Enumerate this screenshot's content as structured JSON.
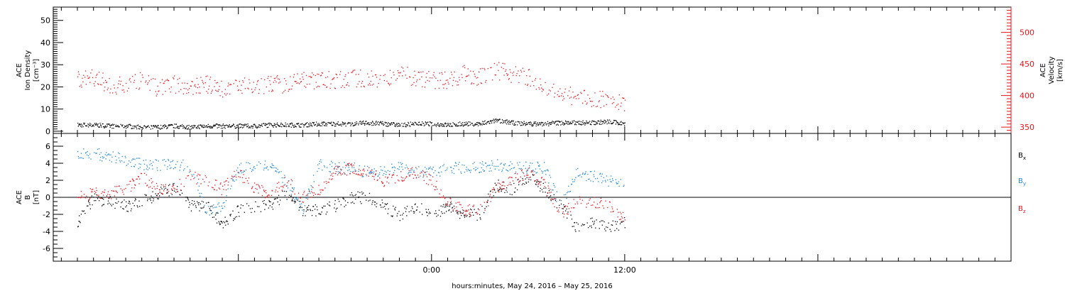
{
  "chart_data": [
    {
      "type": "scatter",
      "title": "",
      "ylabel_left": [
        "ACE",
        "Ion Density",
        "[cm⁻³]"
      ],
      "ylabel_right": [
        "ACE",
        "Velocity",
        "[km/s]"
      ],
      "ylim_left": [
        -1,
        56
      ],
      "ylim_right": [
        340,
        540
      ],
      "yticks_left": [
        "0",
        "10",
        "20",
        "30",
        "40",
        "50"
      ],
      "yticks_right": [
        "350",
        "400",
        "450",
        "500"
      ],
      "series": [
        {
          "axis": "left",
          "color": "#000000",
          "x": [
            -22,
            -21,
            -20,
            -19,
            -18,
            -17,
            -16,
            -15,
            -14,
            -13,
            -12,
            -11,
            -10,
            -9,
            -8,
            -7,
            -6,
            -5,
            -4,
            -3,
            -2,
            -1,
            0,
            1,
            2,
            3,
            4,
            5,
            6,
            7,
            8,
            9,
            10,
            11,
            12
          ],
          "y": [
            3,
            3,
            2.5,
            2.5,
            2,
            2,
            2.5,
            2,
            2.5,
            2.5,
            2.5,
            2.5,
            3,
            3,
            3,
            3.5,
            3.5,
            3.5,
            4,
            3.5,
            3,
            3.5,
            3.5,
            3,
            3.5,
            3.5,
            5,
            4,
            3.5,
            3.5,
            4,
            4,
            4,
            4.5,
            3.5
          ]
        },
        {
          "axis": "right",
          "color": "#e8141b",
          "x": [
            -22,
            -21,
            -20,
            -19,
            -18,
            -17,
            -16,
            -15,
            -14,
            -13,
            -12,
            -11,
            -10,
            -9,
            -8,
            -7,
            -6,
            -5,
            -4,
            -3,
            -2,
            -1,
            0,
            1,
            2,
            3,
            4,
            5,
            6,
            7,
            8,
            9,
            10,
            11,
            12
          ],
          "y": [
            428,
            428,
            418,
            415,
            425,
            410,
            418,
            415,
            418,
            412,
            418,
            412,
            420,
            418,
            425,
            425,
            425,
            428,
            428,
            428,
            435,
            428,
            425,
            425,
            435,
            430,
            440,
            435,
            430,
            415,
            400,
            400,
            395,
            395,
            385
          ]
        }
      ]
    },
    {
      "type": "scatter",
      "title": "",
      "ylabel": [
        "ACE",
        "B",
        "[nT]"
      ],
      "ylim": [
        -7.5,
        7.5
      ],
      "yticks": [
        "-6",
        "-4",
        "-2",
        "0",
        "2",
        "4",
        "6"
      ],
      "series": [
        {
          "name": "B",
          "sub": "x",
          "color": "#000000",
          "x": [
            -22,
            -21,
            -20,
            -19,
            -18,
            -17,
            -16,
            -15,
            -14,
            -13,
            -12,
            -11,
            -10,
            -9,
            -8,
            -7,
            -6,
            -5,
            -4,
            -3,
            -2,
            -1,
            0,
            1,
            2,
            3,
            4,
            5,
            6,
            7,
            8,
            9,
            10,
            11,
            12
          ],
          "y": [
            -3,
            0,
            -0.5,
            -1,
            -0.5,
            0.5,
            1,
            -1,
            -1,
            -3,
            -1.5,
            -1,
            -1,
            0.5,
            -1.5,
            -1.5,
            -1,
            0,
            0,
            -1,
            -2,
            -1,
            -2,
            -1,
            -2,
            -2,
            1.5,
            1,
            2.5,
            1,
            -1,
            -3.5,
            -3,
            -3.5,
            -3
          ]
        },
        {
          "name": "B",
          "sub": "y",
          "color": "#1d86d5",
          "x": [
            -22,
            -21,
            -20,
            -19,
            -18,
            -17,
            -16,
            -15,
            -14,
            -13,
            -12,
            -11,
            -10,
            -9,
            -8,
            -7,
            -6,
            -5,
            -4,
            -3,
            -2,
            -1,
            0,
            1,
            2,
            3,
            4,
            5,
            6,
            7,
            8,
            9,
            10,
            11,
            12
          ],
          "y": [
            5,
            5.2,
            4.8,
            4.5,
            4,
            3.8,
            4,
            3.5,
            -1.5,
            -1,
            3.5,
            3.5,
            3.8,
            2,
            -1.5,
            4,
            3.5,
            3.5,
            3,
            3.2,
            3.5,
            3,
            3,
            3.5,
            3.5,
            3.5,
            3.8,
            3.5,
            3.5,
            3.5,
            -1,
            3,
            2.5,
            2,
            1.8
          ]
        },
        {
          "name": "B",
          "sub": "z",
          "color": "#e8141b",
          "x": [
            -22,
            -21,
            -20,
            -19,
            -18,
            -17,
            -16,
            -15,
            -14,
            -13,
            -12,
            -11,
            -10,
            -9,
            -8,
            -7,
            -6,
            -5,
            -4,
            -3,
            -2,
            -1,
            0,
            1,
            2,
            3,
            4,
            5,
            6,
            7,
            8,
            9,
            10,
            11,
            12
          ],
          "y": [
            0,
            0.5,
            0.5,
            1,
            2.5,
            1,
            1,
            2.5,
            2,
            1,
            3,
            1,
            0.5,
            2,
            0,
            1,
            3,
            3.5,
            3,
            2,
            2.5,
            3,
            2,
            -0.5,
            -1.5,
            -1.5,
            1,
            2,
            3,
            1.5,
            -2,
            -0.5,
            -0.5,
            -1,
            -2.5
          ]
        }
      ]
    }
  ],
  "xaxis": {
    "label": "hours:minutes, May 24, 2016 – May 25, 2016",
    "ticks": [
      "0:00",
      "12:00"
    ],
    "xlim": [
      -23.5,
      36
    ],
    "major_every_hours": 12,
    "minor_every_hours": 1
  }
}
